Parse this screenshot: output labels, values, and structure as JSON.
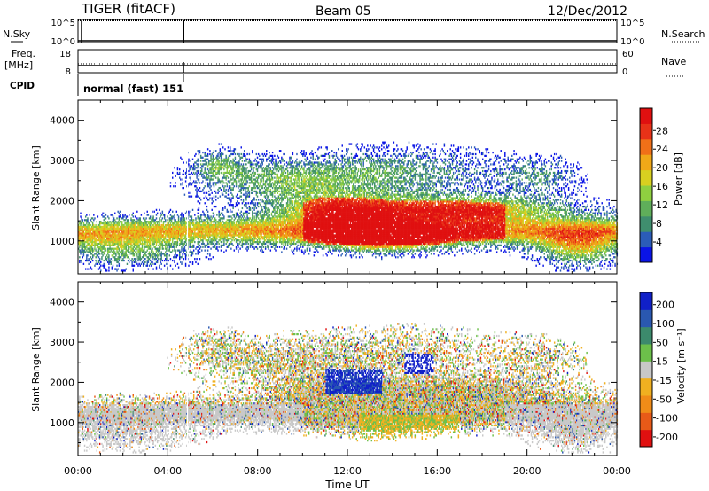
{
  "header": {
    "station": "TIGER (fitACF)",
    "beam": "Beam 05",
    "date": "12/Dec/2012"
  },
  "panels": {
    "nsky": {
      "label": "N.Sky",
      "ticks_left": [
        "10^5",
        "10^0"
      ],
      "ticks_right": [
        "10^5",
        "10^0"
      ],
      "right_label": "N.Search"
    },
    "freq": {
      "label_top": "Freq.",
      "label_bottom": "[MHz]",
      "ticks_left": [
        "18",
        "8"
      ],
      "ticks_right": [
        "60",
        "0"
      ],
      "right_label": "Nave"
    },
    "cpid": {
      "label": "CPID",
      "text": "normal (fast) 151"
    }
  },
  "chart_data": [
    {
      "type": "heatmap",
      "name": "power",
      "xlabel": "Time UT",
      "ylabel": "Slant Range [km]",
      "x_range_hours": [
        0,
        24
      ],
      "x_ticks": [
        "00:00",
        "04:00",
        "08:00",
        "12:00",
        "16:00",
        "20:00",
        "00:00"
      ],
      "ylim": [
        180,
        4500
      ],
      "y_ticks": [
        1000,
        2000,
        3000,
        4000
      ],
      "colorbar": {
        "label": "Power [dB]",
        "ticks": [
          "4",
          "8",
          "12",
          "16",
          "20",
          "24",
          "28"
        ],
        "colors": [
          "#0a14e6",
          "#2b5cb8",
          "#3f8e6e",
          "#5fae5a",
          "#8fd040",
          "#d8d020",
          "#f0a818",
          "#f07018",
          "#e83218",
          "#e01010"
        ]
      }
    },
    {
      "type": "heatmap",
      "name": "velocity",
      "xlabel": "Time UT",
      "ylabel": "Slant Range [km]",
      "x_range_hours": [
        0,
        24
      ],
      "x_ticks": [
        "00:00",
        "04:00",
        "08:00",
        "12:00",
        "16:00",
        "20:00",
        "00:00"
      ],
      "ylim": [
        180,
        4500
      ],
      "y_ticks": [
        1000,
        2000,
        3000,
        4000
      ],
      "colorbar": {
        "label": "Velocity [m s⁻¹]",
        "ticks": [
          "200",
          "100",
          "50",
          "15",
          "-15",
          "-50",
          "-100",
          "-200"
        ],
        "colors": [
          "#1020c8",
          "#2a58b0",
          "#3c8a6c",
          "#6cc04a",
          "#c8c8c8",
          "#f0b020",
          "#f08c18",
          "#e85a18",
          "#e01010"
        ]
      }
    }
  ]
}
